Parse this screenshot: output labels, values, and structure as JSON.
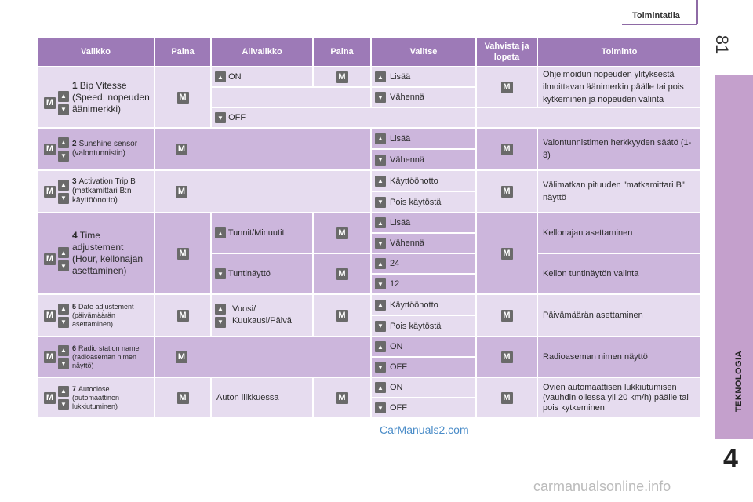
{
  "header": {
    "title": "Toimintatila",
    "page_number": "81"
  },
  "side_tab": {
    "label": "TEKNOLOGIA",
    "chapter_number": "4"
  },
  "table": {
    "headers": [
      "Valikko",
      "Paina",
      "Alivalikko",
      "Paina",
      "Valitse",
      "Vahvista ja lopeta",
      "Toiminto"
    ],
    "rows": [
      {
        "menu_num": "1",
        "menu_text": "Bip Vitesse (Speed, nopeuden äänimerkki)",
        "sub": [
          "ON",
          "",
          "OFF"
        ],
        "sel": [
          "Lisää",
          "Vähennä",
          ""
        ],
        "function": "Ohjelmoidun nopeuden ylityksestä ilmoittavan äänimerkin päälle tai pois kytkeminen ja nopeuden valinta"
      },
      {
        "menu_num": "2",
        "menu_text": "Sunshine sensor (valontunnistin)",
        "sel": [
          "Lisää",
          "Vähennä"
        ],
        "function": "Valontunnistimen herkkyyden säätö (1-3)"
      },
      {
        "menu_num": "3",
        "menu_text": "Activation Trip B (matkamittari B:n käyttöönotto)",
        "sel": [
          "Käyttöönotto",
          "Pois käytöstä"
        ],
        "function": "Välimatkan pituuden \"matkamittari B\" näyttö"
      },
      {
        "menu_num": "4",
        "menu_text": "Time adjustement (Hour, kellonajan asettaminen)",
        "sub": [
          "Tunnit/Minuutit",
          "Tuntinäyttö"
        ],
        "sel": [
          "Lisää",
          "Vähennä",
          "24",
          "12"
        ],
        "function": [
          "Kellonajan asettaminen",
          "Kellon tuntinäytön valinta"
        ]
      },
      {
        "menu_num": "5",
        "menu_text": "Date adjustement (päivämäärän asettaminen)",
        "sub": "Vuosi/ Kuukausi/Päivä",
        "sel": [
          "Käyttöönotto",
          "Pois käytöstä"
        ],
        "function": "Päivämäärän asettaminen"
      },
      {
        "menu_num": "6",
        "menu_text": "Radio station name (radioaseman nimen näyttö)",
        "sel": [
          "ON",
          "OFF"
        ],
        "function": "Radioaseman nimen näyttö"
      },
      {
        "menu_num": "7",
        "menu_text": "Autoclose (automaattinen lukkiutuminen)",
        "sub": "Auton liikkuessa",
        "sel": [
          "ON",
          "OFF"
        ],
        "function": "Ovien automaattisen lukkiutumisen (vauhdin ollessa yli 20 km/h) päälle tai pois kytkeminen"
      }
    ]
  },
  "key_labels": {
    "m": "M",
    "up": "▲",
    "down": "▼"
  },
  "watermarks": {
    "mid": "CarManuals2.com",
    "bottom": "carmanualsonline.info"
  }
}
